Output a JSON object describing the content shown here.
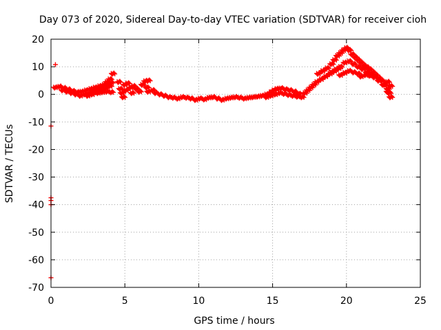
{
  "chart_data": {
    "type": "scatter",
    "title": "Day 073 of 2020, Sidereal Day-to-day VTEC variation (SDTVAR) for receiver cioh",
    "xlabel": "GPS time / hours",
    "ylabel": "SDTVAR / TECUs",
    "xlim": [
      0,
      25
    ],
    "ylim": [
      -70,
      20
    ],
    "xticks": [
      "0",
      "5",
      "10",
      "15",
      "20",
      "25"
    ],
    "yticks": [
      "20",
      "10",
      "0",
      "-10",
      "-20",
      "-30",
      "-40",
      "-50",
      "-60",
      "-70"
    ],
    "grid": true,
    "marker": "+",
    "color": "#ff0000",
    "series": [
      {
        "name": "SDTVAR",
        "points": [
          [
            0.3,
            10.8
          ],
          [
            0.0,
            -11.5
          ],
          [
            0.0,
            -37.5
          ],
          [
            0.0,
            -38.5
          ],
          [
            0.0,
            -40.0
          ],
          [
            0.0,
            -66.5
          ],
          [
            0.3,
            2.5
          ],
          [
            0.6,
            2.8
          ],
          [
            0.9,
            2.3
          ],
          [
            1.2,
            1.8
          ],
          [
            1.5,
            1.2
          ],
          [
            1.8,
            0.8
          ],
          [
            2.1,
            1.0
          ],
          [
            2.4,
            1.5
          ],
          [
            2.7,
            2.0
          ],
          [
            3.0,
            2.5
          ],
          [
            3.3,
            3.0
          ],
          [
            3.6,
            3.5
          ],
          [
            3.9,
            4.0
          ],
          [
            4.1,
            4.2
          ],
          [
            0.8,
            1.5
          ],
          [
            1.1,
            1.0
          ],
          [
            1.4,
            0.5
          ],
          [
            1.7,
            0.0
          ],
          [
            2.0,
            -0.5
          ],
          [
            2.3,
            0.0
          ],
          [
            2.6,
            0.5
          ],
          [
            2.9,
            1.2
          ],
          [
            3.2,
            2.0
          ],
          [
            3.5,
            3.0
          ],
          [
            3.8,
            4.5
          ],
          [
            4.0,
            5.5
          ],
          [
            4.2,
            7.5
          ],
          [
            2.5,
            -0.5
          ],
          [
            2.8,
            0.0
          ],
          [
            3.1,
            0.8
          ],
          [
            3.4,
            1.5
          ],
          [
            3.7,
            2.2
          ],
          [
            4.0,
            3.0
          ],
          [
            3.2,
            0.5
          ],
          [
            3.5,
            0.8
          ],
          [
            3.8,
            1.0
          ],
          [
            4.1,
            0.8
          ],
          [
            4.6,
            4.5
          ],
          [
            4.7,
            2.0
          ],
          [
            4.8,
            0.5
          ],
          [
            4.9,
            -1.0
          ],
          [
            5.0,
            3.5
          ],
          [
            5.1,
            1.5
          ],
          [
            5.2,
            4.0
          ],
          [
            5.4,
            2.5
          ],
          [
            5.5,
            0.5
          ],
          [
            5.6,
            3.0
          ],
          [
            5.8,
            2.0
          ],
          [
            6.0,
            1.0
          ],
          [
            6.2,
            3.5
          ],
          [
            6.4,
            4.8
          ],
          [
            6.5,
            2.5
          ],
          [
            6.6,
            5.0
          ],
          [
            6.6,
            1.0
          ],
          [
            6.9,
            1.5
          ],
          [
            7.1,
            0.5
          ],
          [
            7.4,
            0.0
          ],
          [
            7.7,
            -0.5
          ],
          [
            8.0,
            -1.0
          ],
          [
            8.3,
            -1.2
          ],
          [
            8.6,
            -1.5
          ],
          [
            8.9,
            -1.0
          ],
          [
            9.2,
            -1.2
          ],
          [
            9.5,
            -1.5
          ],
          [
            9.8,
            -2.0
          ],
          [
            10.1,
            -1.5
          ],
          [
            10.4,
            -1.8
          ],
          [
            10.7,
            -1.2
          ],
          [
            11.0,
            -1.0
          ],
          [
            11.3,
            -1.5
          ],
          [
            11.6,
            -2.0
          ],
          [
            11.9,
            -1.5
          ],
          [
            12.2,
            -1.2
          ],
          [
            12.5,
            -1.0
          ],
          [
            12.8,
            -1.2
          ],
          [
            13.1,
            -1.5
          ],
          [
            13.4,
            -1.2
          ],
          [
            13.7,
            -1.0
          ],
          [
            14.0,
            -0.8
          ],
          [
            14.3,
            -0.5
          ],
          [
            14.6,
            0.0
          ],
          [
            14.9,
            0.8
          ],
          [
            15.1,
            1.5
          ],
          [
            15.3,
            2.0
          ],
          [
            15.6,
            2.2
          ],
          [
            15.9,
            1.8
          ],
          [
            16.2,
            1.5
          ],
          [
            16.5,
            1.0
          ],
          [
            16.8,
            0.2
          ],
          [
            17.0,
            -1.0
          ],
          [
            14.6,
            -1.0
          ],
          [
            14.9,
            -0.5
          ],
          [
            15.2,
            0.0
          ],
          [
            15.5,
            0.5
          ],
          [
            15.8,
            0.2
          ],
          [
            16.1,
            -0.2
          ],
          [
            16.4,
            -0.5
          ],
          [
            16.7,
            -0.8
          ],
          [
            17.2,
            0.5
          ],
          [
            17.4,
            1.5
          ],
          [
            17.6,
            2.5
          ],
          [
            17.8,
            3.5
          ],
          [
            18.0,
            4.5
          ],
          [
            18.3,
            5.5
          ],
          [
            18.6,
            6.5
          ],
          [
            18.9,
            7.5
          ],
          [
            19.2,
            8.5
          ],
          [
            19.5,
            9.5
          ],
          [
            18.1,
            7.5
          ],
          [
            18.4,
            8.5
          ],
          [
            18.7,
            9.5
          ],
          [
            19.0,
            11.0
          ],
          [
            19.2,
            12.5
          ],
          [
            19.4,
            14.0
          ],
          [
            19.6,
            15.0
          ],
          [
            19.8,
            16.0
          ],
          [
            20.0,
            16.8
          ],
          [
            20.2,
            16.0
          ],
          [
            20.4,
            14.5
          ],
          [
            20.6,
            13.5
          ],
          [
            20.8,
            12.5
          ],
          [
            21.0,
            11.5
          ],
          [
            21.2,
            10.5
          ],
          [
            21.4,
            9.8
          ],
          [
            21.6,
            9.0
          ],
          [
            21.8,
            8.0
          ],
          [
            22.0,
            7.0
          ],
          [
            22.2,
            6.0
          ],
          [
            22.4,
            5.0
          ],
          [
            22.6,
            3.5
          ],
          [
            22.8,
            2.0
          ],
          [
            22.9,
            0.5
          ],
          [
            23.0,
            -1.0
          ],
          [
            19.0,
            8.0
          ],
          [
            19.3,
            9.0
          ],
          [
            19.6,
            10.0
          ],
          [
            19.9,
            11.5
          ],
          [
            20.2,
            12.0
          ],
          [
            20.5,
            11.0
          ],
          [
            20.8,
            10.0
          ],
          [
            21.1,
            9.2
          ],
          [
            21.4,
            8.0
          ],
          [
            21.7,
            7.0
          ],
          [
            19.6,
            7.0
          ],
          [
            19.9,
            7.8
          ],
          [
            20.2,
            8.5
          ],
          [
            20.5,
            8.0
          ],
          [
            20.8,
            7.5
          ],
          [
            21.0,
            6.5
          ],
          [
            21.3,
            7.0
          ],
          [
            21.6,
            6.8
          ],
          [
            21.9,
            6.2
          ],
          [
            22.2,
            5.0
          ],
          [
            22.5,
            3.5
          ],
          [
            22.8,
            1.0
          ],
          [
            22.8,
            4.5
          ],
          [
            23.0,
            3.0
          ]
        ]
      }
    ]
  }
}
